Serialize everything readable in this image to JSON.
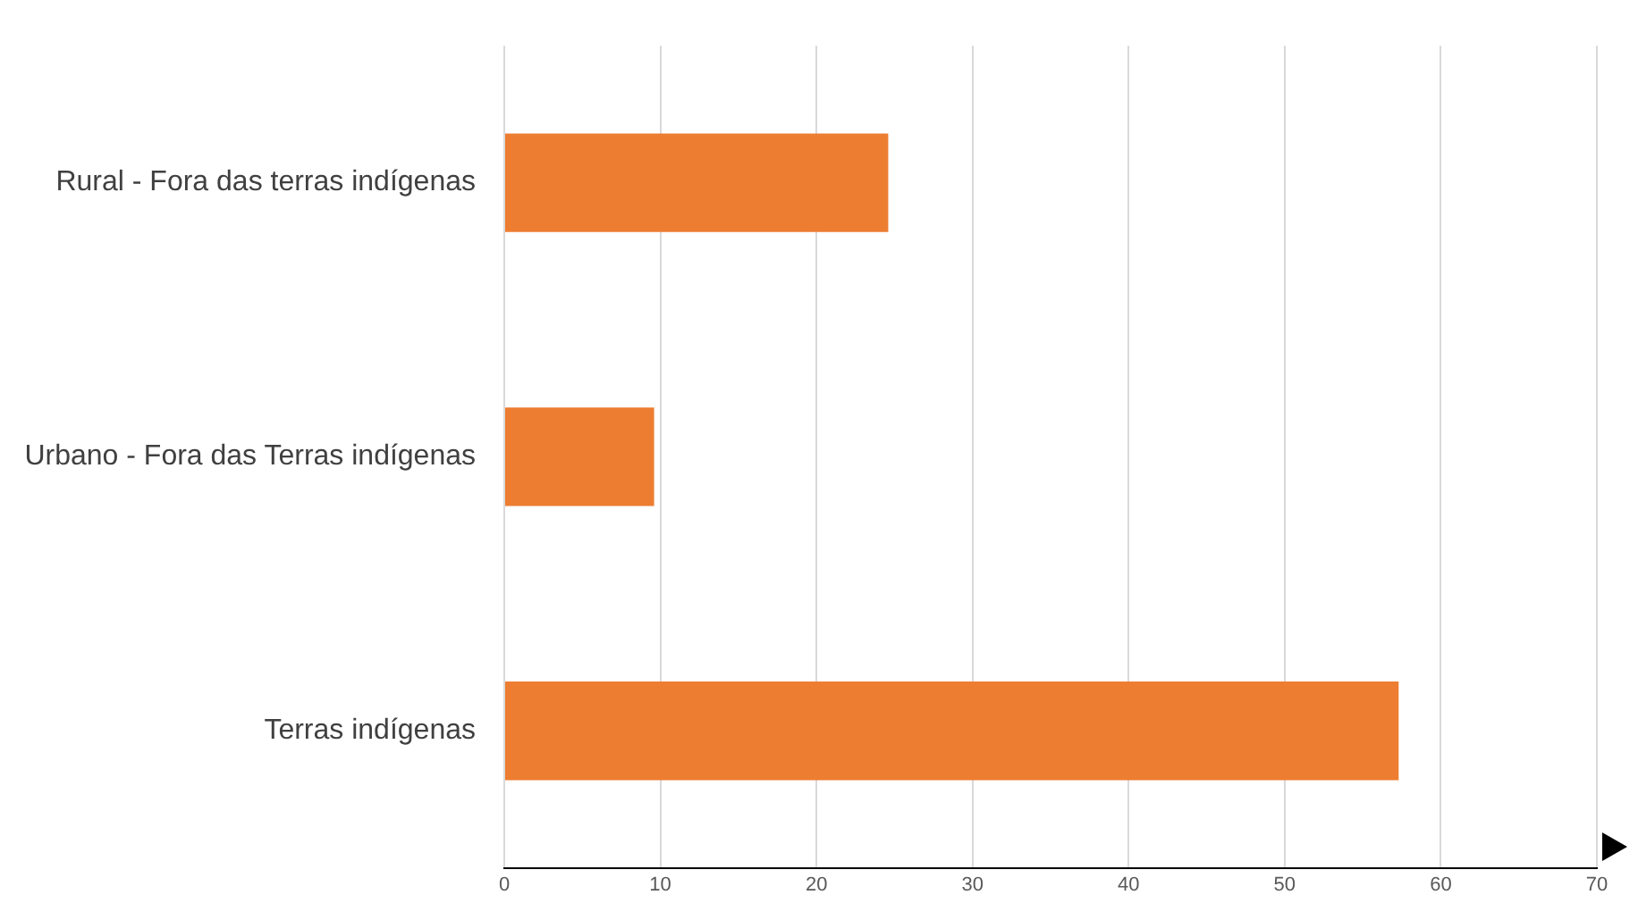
{
  "chart_data": {
    "type": "bar",
    "orientation": "horizontal",
    "categories": [
      "Rural - Fora das terras indígenas",
      "Urbano - Fora das Terras indígenas",
      "Terras indígenas"
    ],
    "values": [
      24.6,
      9.6,
      57.3
    ],
    "color": "#ed7d31",
    "xlim": [
      0,
      70
    ],
    "xticks": [
      0,
      10,
      20,
      30,
      40,
      50,
      60,
      70
    ],
    "grid": "x",
    "legend": false
  }
}
